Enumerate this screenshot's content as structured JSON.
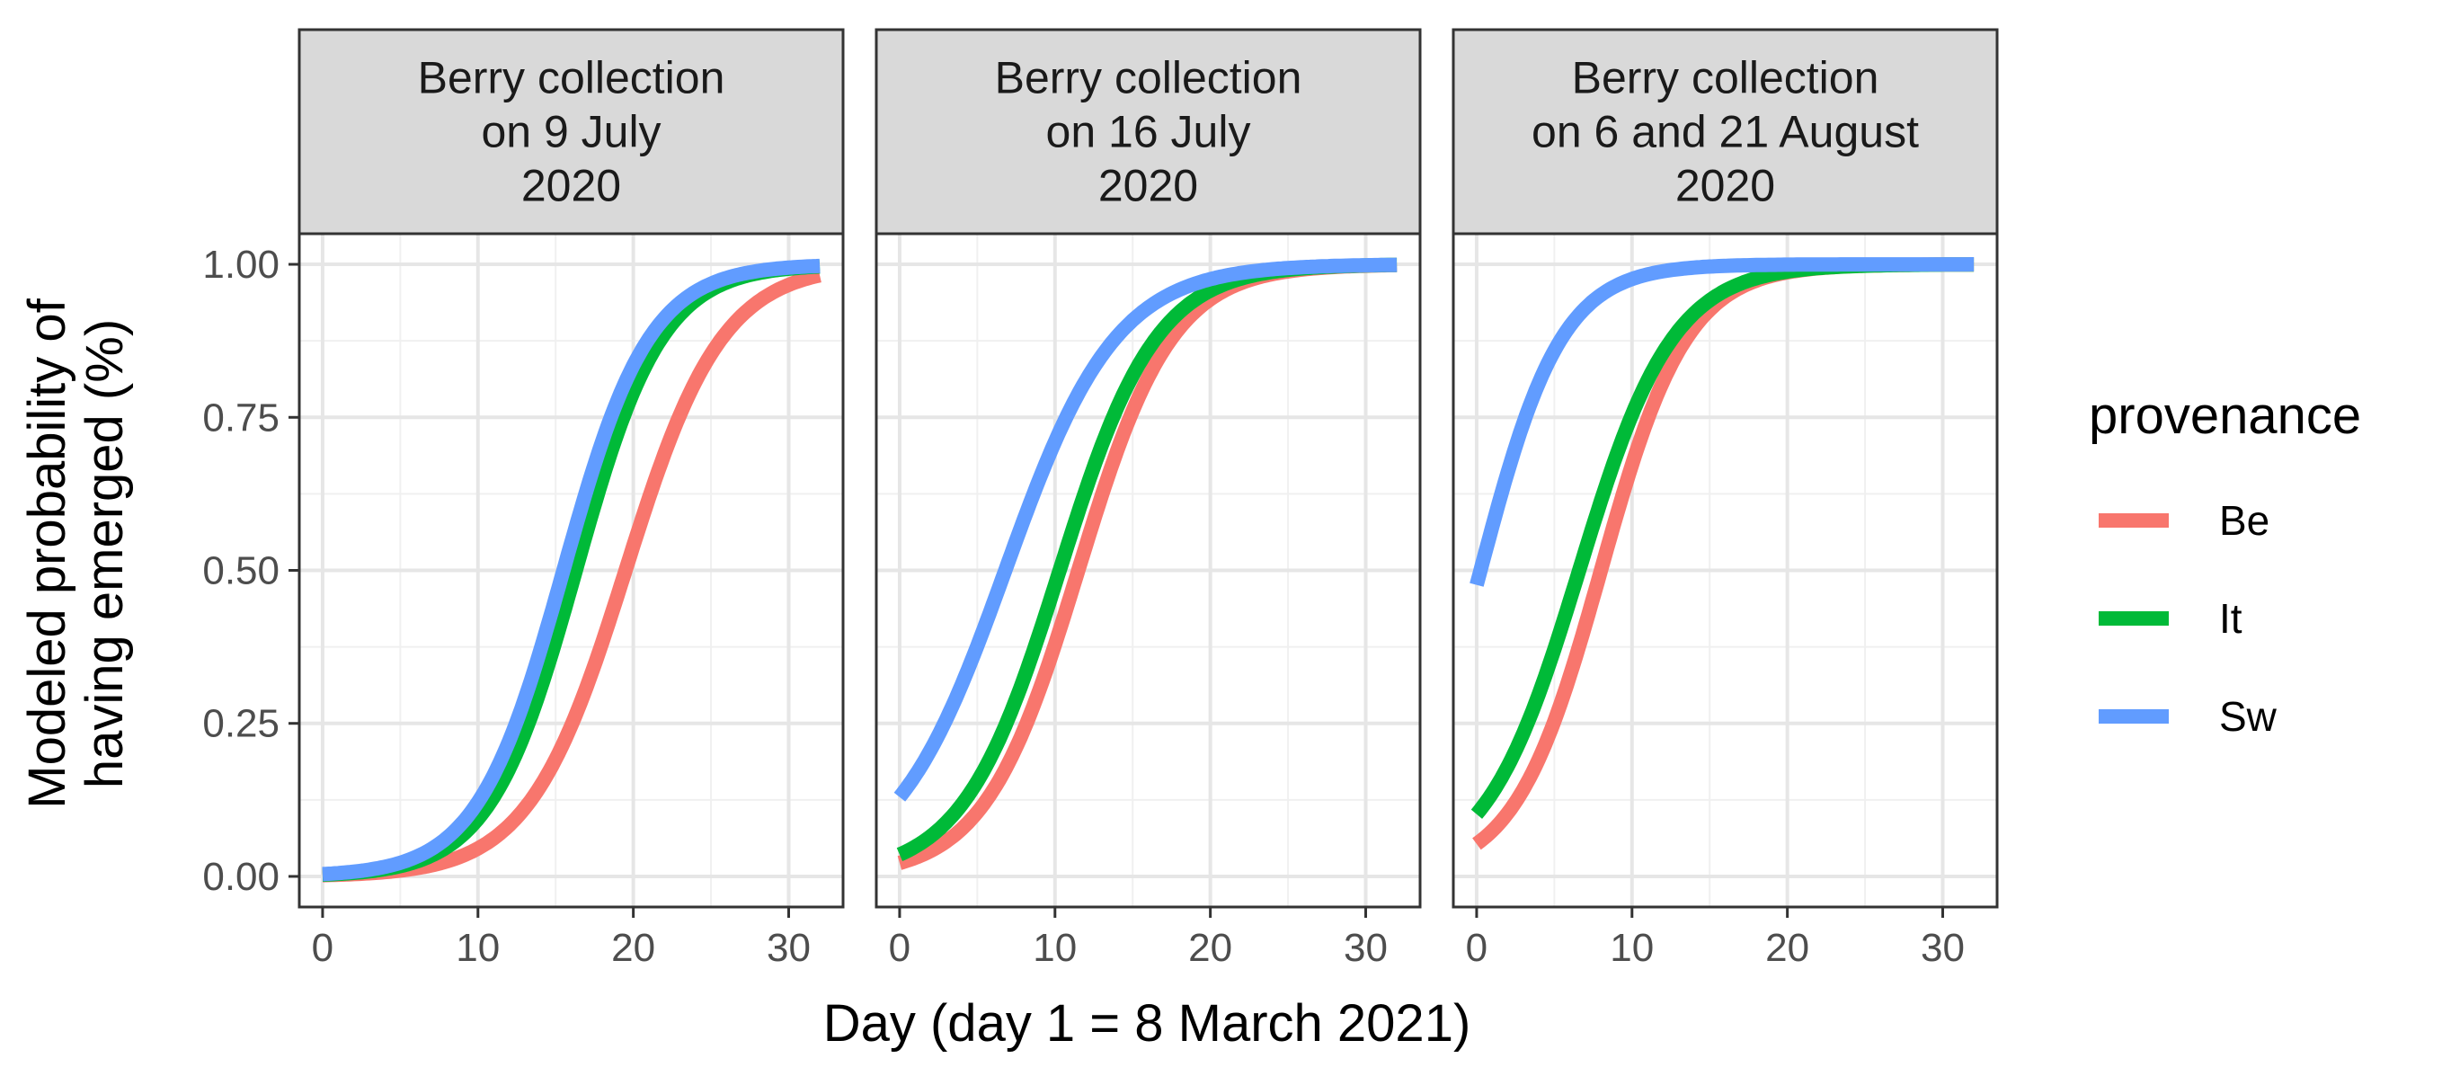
{
  "chart_data": {
    "type": "line",
    "xlabel": "Day (day 1 = 8 March 2021)",
    "ylabel_lines": [
      "Modeled probability of",
      "having emerged (%)"
    ],
    "xlim": [
      -1.5,
      33.5
    ],
    "ylim": [
      -0.05,
      1.05
    ],
    "x_ticks": [
      0,
      10,
      20,
      30
    ],
    "x_tick_labels": [
      "0",
      "10",
      "20",
      "30"
    ],
    "y_ticks": [
      0,
      0.25,
      0.5,
      0.75,
      1
    ],
    "y_tick_labels": [
      "0.00",
      "0.25",
      "0.50",
      "0.75",
      "1.00"
    ],
    "legend": {
      "title": "provenance",
      "position": "right",
      "entries": [
        {
          "name": "Be",
          "color": "#F8766D"
        },
        {
          "name": "It",
          "color": "#00BA38"
        },
        {
          "name": "Sw",
          "color": "#619CFF"
        }
      ]
    },
    "x_range": [
      0,
      32
    ],
    "panels": [
      {
        "strip_lines": [
          "Berry collection",
          "on 9 July",
          "2020"
        ],
        "series": [
          {
            "name": "Be",
            "midpoint": 19.5,
            "rate": 0.32
          },
          {
            "name": "It",
            "midpoint": 16.3,
            "rate": 0.36
          },
          {
            "name": "Sw",
            "midpoint": 15.5,
            "rate": 0.36
          }
        ]
      },
      {
        "strip_lines": [
          "Berry collection",
          "on 16 July",
          "2020"
        ],
        "series": [
          {
            "name": "Be",
            "midpoint": 11.5,
            "rate": 0.33
          },
          {
            "name": "It",
            "midpoint": 10.3,
            "rate": 0.32
          },
          {
            "name": "Sw",
            "midpoint": 6.8,
            "rate": 0.28
          }
        ]
      },
      {
        "strip_lines": [
          "Berry collection",
          "on 6 and 21 August",
          "2020"
        ],
        "series": [
          {
            "name": "Be",
            "midpoint": 8.0,
            "rate": 0.36
          },
          {
            "name": "It",
            "midpoint": 6.6,
            "rate": 0.33
          },
          {
            "name": "Sw",
            "midpoint": 0.25,
            "rate": 0.38
          }
        ]
      }
    ]
  }
}
